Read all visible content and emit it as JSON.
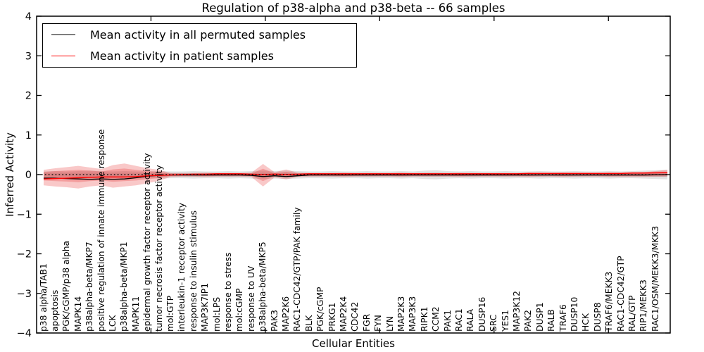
{
  "title": "Regulation of p38-alpha and p38-beta -- 66 samples",
  "axes": {
    "ylabel": "Inferred Activity",
    "xlabel": "Cellular Entities",
    "ylim": [
      -4,
      4
    ],
    "yticks": [
      4,
      3,
      2,
      1,
      0,
      -1,
      -2,
      -3,
      -4
    ],
    "xticks": [
      10,
      20,
      30,
      40,
      50
    ],
    "grid": false,
    "zero_line": "dotted"
  },
  "legend": {
    "position": "upper-left",
    "items": [
      {
        "label": "Mean activity in all permuted samples",
        "color": "#000000"
      },
      {
        "label": "Mean activity in patient samples",
        "color": "#ff0000"
      }
    ]
  },
  "colors": {
    "patient_line": "#ff0000",
    "patient_band": "#e41b1b",
    "permuted_line": "#000000",
    "permuted_band": "#999999",
    "axis": "#000000"
  },
  "chart_data": {
    "type": "line",
    "title": "Regulation of p38-alpha and p38-beta -- 66 samples",
    "xlabel": "Cellular Entities",
    "ylabel": "Inferred Activity",
    "ylim": [
      -4,
      4
    ],
    "legend_position": "upper left",
    "categories": [
      "p38 alpha/TAB1",
      "apoptosis",
      "PGK/cGMP/p38 alpha",
      "MAPK14",
      "p38alpha-beta/MKP7",
      "positive regulation of innate immune response",
      "LCK",
      "p38alpha-beta/MKP1",
      "MAPK11",
      "epidermal growth factor receptor activity",
      "tumor necrosis factor receptor activity",
      "mol:GTP",
      "interleukin-1 receptor activity",
      "response to insulin stimulus",
      "MAP3K7IP1",
      "mol:LPS",
      "response to stress",
      "mol:cGMP",
      "response to UV",
      "p38alpha-beta/MKP5",
      "PAK3",
      "MAP2K6",
      "RAC1-CDC42/GTP/PAK family",
      "BLK",
      "PGK/cGMP",
      "PRKG1",
      "MAP2K4",
      "CDC42",
      "FGR",
      "FYN",
      "LYN",
      "MAP2K3",
      "MAP3K3",
      "RIPK1",
      "CCM2",
      "PAK1",
      "RAC1",
      "RALA",
      "DUSP16",
      "SRC",
      "YES1",
      "MAP3K12",
      "PAK2",
      "DUSP1",
      "RALB",
      "TRAF6",
      "DUSP10",
      "HCK",
      "DUSP8",
      "TRAF6/MEKK3",
      "RAC1-CDC42/GTP",
      "RAL/GTP",
      "RIP1/MEKK3",
      "RAC1/OSM/MEKK3/MKK3"
    ],
    "series": [
      {
        "name": "Mean activity in all permuted samples",
        "color": "#000000",
        "values": [
          -0.09,
          -0.09,
          -0.1,
          -0.11,
          -0.12,
          -0.11,
          -0.12,
          -0.11,
          -0.08,
          -0.04,
          -0.02,
          -0.01,
          -0.01,
          -0.01,
          -0.01,
          -0.01,
          -0.01,
          -0.01,
          -0.02,
          -0.05,
          -0.03,
          -0.05,
          -0.03,
          -0.01,
          -0.01,
          -0.01,
          -0.01,
          -0.01,
          -0.01,
          -0.01,
          -0.01,
          -0.01,
          -0.01,
          -0.01,
          -0.01,
          -0.01,
          -0.01,
          -0.01,
          -0.01,
          -0.01,
          -0.01,
          -0.01,
          -0.01,
          -0.01,
          -0.01,
          -0.01,
          -0.01,
          -0.01,
          -0.01,
          -0.01,
          -0.01,
          -0.01,
          -0.01,
          0.0
        ]
      },
      {
        "name": "Mean activity in patient samples",
        "color": "#ff0000",
        "values": [
          -0.11,
          -0.1,
          -0.09,
          -0.08,
          -0.07,
          -0.06,
          -0.06,
          -0.06,
          -0.05,
          -0.03,
          -0.02,
          -0.01,
          0.0,
          0.01,
          0.01,
          0.02,
          0.02,
          0.02,
          0.01,
          0.0,
          0.01,
          0.0,
          0.01,
          0.02,
          0.02,
          0.02,
          0.02,
          0.02,
          0.02,
          0.02,
          0.02,
          0.02,
          0.02,
          0.02,
          0.02,
          0.02,
          0.02,
          0.02,
          0.02,
          0.02,
          0.02,
          0.02,
          0.03,
          0.03,
          0.03,
          0.03,
          0.03,
          0.03,
          0.03,
          0.03,
          0.03,
          0.04,
          0.04,
          0.05
        ]
      }
    ],
    "bands": [
      {
        "name": "permuted-range",
        "color": "#999999",
        "opacity": 0.28,
        "inner_scale": 0.5,
        "upper": [
          0.08,
          0.09,
          0.08,
          0.09,
          0.1,
          0.09,
          0.08,
          0.09,
          0.08,
          0.08,
          0.09,
          0.08,
          0.08,
          0.09,
          0.08,
          0.08,
          0.09,
          0.08,
          0.09,
          0.1,
          0.09,
          0.1,
          0.09,
          0.08,
          0.08,
          0.09,
          0.08,
          0.08,
          0.09,
          0.08,
          0.08,
          0.09,
          0.08,
          0.1,
          0.11,
          0.09,
          0.08,
          0.09,
          0.08,
          0.08,
          0.09,
          0.08,
          0.08,
          0.09,
          0.08,
          0.08,
          0.09,
          0.08,
          0.08,
          0.09,
          0.08,
          0.09,
          0.1,
          0.12
        ],
        "lower": [
          -0.09,
          -0.1,
          -0.1,
          -0.11,
          -0.12,
          -0.11,
          -0.12,
          -0.11,
          -0.1,
          -0.09,
          -0.1,
          -0.09,
          -0.09,
          -0.1,
          -0.09,
          -0.09,
          -0.1,
          -0.09,
          -0.1,
          -0.11,
          -0.1,
          -0.11,
          -0.1,
          -0.09,
          -0.09,
          -0.1,
          -0.09,
          -0.09,
          -0.1,
          -0.09,
          -0.09,
          -0.1,
          -0.09,
          -0.11,
          -0.12,
          -0.1,
          -0.09,
          -0.1,
          -0.09,
          -0.09,
          -0.1,
          -0.09,
          -0.09,
          -0.1,
          -0.09,
          -0.09,
          -0.1,
          -0.09,
          -0.09,
          -0.1,
          -0.09,
          -0.09,
          -0.1,
          -0.12
        ]
      },
      {
        "name": "patient-range",
        "color": "#e41b1b",
        "opacity": 0.24,
        "inner_scale": 0.55,
        "upper": [
          0.12,
          0.16,
          0.19,
          0.22,
          0.18,
          0.14,
          0.24,
          0.28,
          0.22,
          0.16,
          0.12,
          0.04,
          0.04,
          0.04,
          0.05,
          0.04,
          0.04,
          0.04,
          0.05,
          0.27,
          0.06,
          0.13,
          0.05,
          0.04,
          0.04,
          0.04,
          0.05,
          0.04,
          0.04,
          0.04,
          0.04,
          0.05,
          0.04,
          0.04,
          0.04,
          0.04,
          0.05,
          0.04,
          0.04,
          0.04,
          0.04,
          0.04,
          0.05,
          0.04,
          0.04,
          0.05,
          0.04,
          0.04,
          0.04,
          0.05,
          0.05,
          0.05,
          0.06,
          0.12
        ],
        "lower": [
          -0.27,
          -0.3,
          -0.32,
          -0.35,
          -0.3,
          -0.27,
          -0.33,
          -0.3,
          -0.27,
          -0.22,
          -0.15,
          -0.06,
          -0.05,
          -0.05,
          -0.06,
          -0.05,
          -0.05,
          -0.05,
          -0.06,
          -0.3,
          -0.07,
          -0.12,
          -0.06,
          -0.05,
          -0.05,
          -0.05,
          -0.06,
          -0.05,
          -0.05,
          -0.05,
          -0.05,
          -0.06,
          -0.05,
          -0.05,
          -0.05,
          -0.05,
          -0.06,
          -0.05,
          -0.05,
          -0.05,
          -0.05,
          -0.05,
          -0.06,
          -0.05,
          -0.05,
          -0.06,
          -0.05,
          -0.05,
          -0.05,
          -0.06,
          -0.06,
          -0.06,
          -0.06,
          -0.05
        ]
      }
    ]
  }
}
